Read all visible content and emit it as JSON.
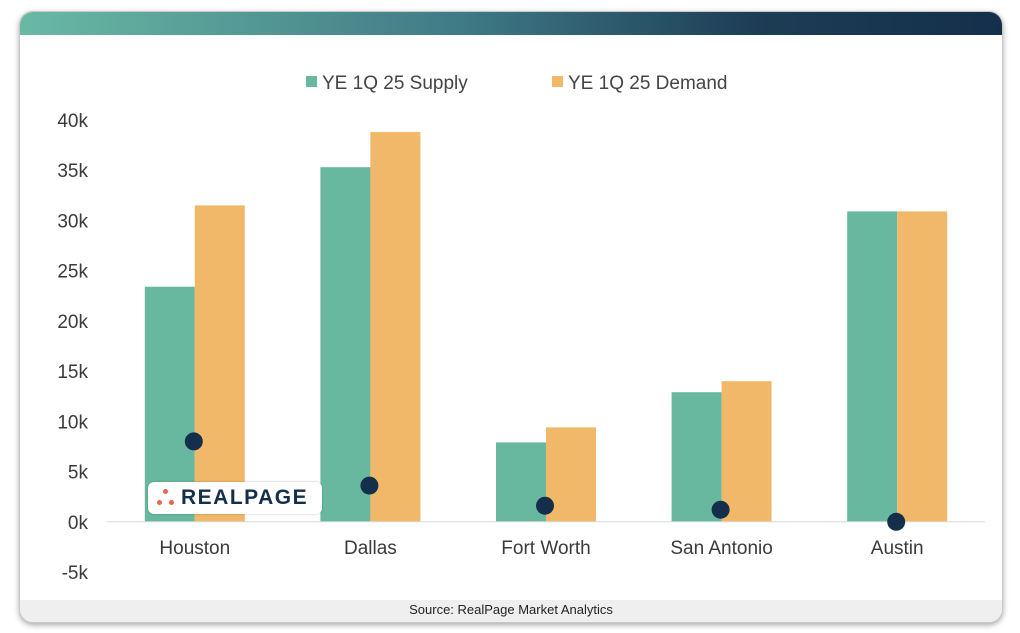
{
  "chart_data": {
    "type": "bar",
    "categories": [
      "Houston",
      "Dallas",
      "Fort Worth",
      "San Antonio",
      "Austin"
    ],
    "series": [
      {
        "name": "YE 1Q 25 Supply",
        "values": [
          23400,
          35300,
          7900,
          12900,
          30900
        ],
        "color": "#68b89f"
      },
      {
        "name": "YE 1Q 25 Demand",
        "values": [
          31500,
          38800,
          9400,
          14000,
          30900
        ],
        "color": "#f2b869"
      }
    ],
    "markers": {
      "values": [
        8000,
        3600,
        1600,
        1200,
        0
      ],
      "color": "#142f4b"
    },
    "ylim": [
      -5000,
      40000
    ],
    "yticks": [
      40000,
      35000,
      30000,
      25000,
      20000,
      15000,
      10000,
      5000,
      0,
      -5000
    ],
    "ytick_labels": [
      "40k",
      "35k",
      "30k",
      "25k",
      "20k",
      "15k",
      "10k",
      "5k",
      "0k",
      "-5k"
    ],
    "legend_position": "top-center",
    "grid": false,
    "title": "",
    "xlabel": "",
    "ylabel": ""
  },
  "footer": {
    "source": "Source: RealPage Market Analytics"
  },
  "logo": {
    "text": "REALPAGE"
  },
  "colors": {
    "axis": "#d9d9d9",
    "brand_dark": "#142f4b",
    "brand_accent": "#e5674c"
  }
}
